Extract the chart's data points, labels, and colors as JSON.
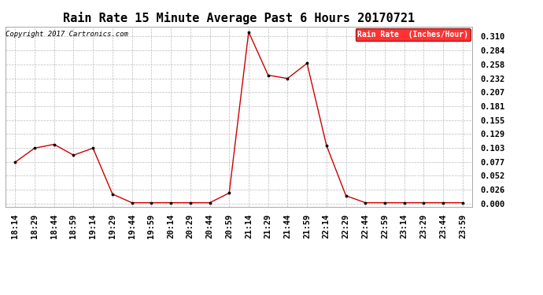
{
  "title": "Rain Rate 15 Minute Average Past 6 Hours 20170721",
  "copyright": "Copyright 2017 Cartronics.com",
  "legend_label": "Rain Rate  (Inches/Hour)",
  "legend_bg": "#ff0000",
  "legend_text_color": "#ffffff",
  "line_color": "#cc0000",
  "marker_color": "#000000",
  "background_color": "#ffffff",
  "grid_color": "#bbbbbb",
  "x_labels": [
    "18:14",
    "18:29",
    "18:44",
    "18:59",
    "19:14",
    "19:29",
    "19:44",
    "19:59",
    "20:14",
    "20:29",
    "20:44",
    "20:59",
    "21:14",
    "21:29",
    "21:44",
    "21:59",
    "22:14",
    "22:29",
    "22:44",
    "22:59",
    "23:14",
    "23:29",
    "23:44",
    "23:59"
  ],
  "y_values": [
    0.077,
    0.103,
    0.11,
    0.09,
    0.103,
    0.018,
    0.002,
    0.002,
    0.002,
    0.002,
    0.002,
    0.02,
    0.318,
    0.238,
    0.232,
    0.26,
    0.108,
    0.015,
    0.002,
    0.002,
    0.002,
    0.002,
    0.002,
    0.002
  ],
  "yticks": [
    0.0,
    0.026,
    0.052,
    0.077,
    0.103,
    0.129,
    0.155,
    0.181,
    0.207,
    0.232,
    0.258,
    0.284,
    0.31
  ],
  "ylim": [
    -0.005,
    0.328
  ],
  "title_fontsize": 11,
  "copyright_fontsize": 6.5,
  "tick_fontsize": 7.5,
  "legend_fontsize": 7
}
